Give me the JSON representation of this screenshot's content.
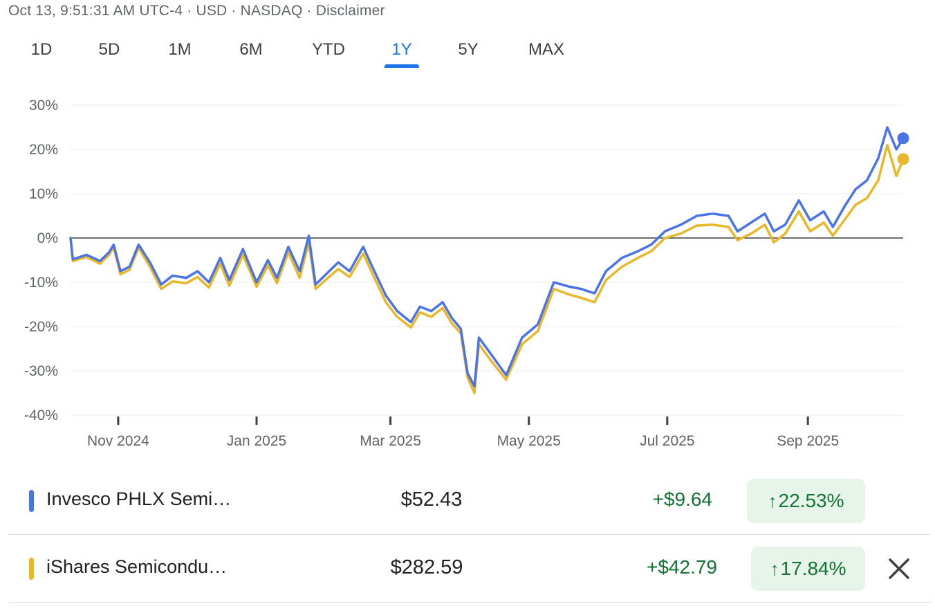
{
  "header": {
    "timestamp": "Oct 13, 9:51:31 AM UTC-4",
    "currency": "USD",
    "exchange": "NASDAQ",
    "disclaimer": "Disclaimer",
    "separator": "·"
  },
  "range_tabs": [
    {
      "label": "1D",
      "active": false
    },
    {
      "label": "5D",
      "active": false
    },
    {
      "label": "1M",
      "active": false
    },
    {
      "label": "6M",
      "active": false
    },
    {
      "label": "YTD",
      "active": false
    },
    {
      "label": "1Y",
      "active": true
    },
    {
      "label": "5Y",
      "active": false
    },
    {
      "label": "MAX",
      "active": false
    }
  ],
  "colors": {
    "series_1": "#4a73e8",
    "series_2": "#e8b72a",
    "positive": "#137333",
    "positive_bg": "#e6f4ea",
    "active_tab": "#1a73e8"
  },
  "chart_data": {
    "type": "line",
    "title": "",
    "xlabel": "",
    "ylabel": "",
    "y_unit": "%",
    "ylim": [
      -40,
      30
    ],
    "y_ticks": [
      30,
      20,
      10,
      0,
      -10,
      -20,
      -30,
      -40
    ],
    "y_tick_labels": [
      "30%",
      "20%",
      "10%",
      "0%",
      "-10%",
      "-20%",
      "-30%",
      "-40%"
    ],
    "x_range": [
      "2024-10-11",
      "2025-10-13"
    ],
    "x_ticks": [
      {
        "date": "2024-11-01",
        "label": "Nov 2024"
      },
      {
        "date": "2025-01-01",
        "label": "Jan 2025"
      },
      {
        "date": "2025-03-01",
        "label": "Mar 2025"
      },
      {
        "date": "2025-05-01",
        "label": "May 2025"
      },
      {
        "date": "2025-07-01",
        "label": "Jul 2025"
      },
      {
        "date": "2025-09-01",
        "label": "Sep 2025"
      }
    ],
    "grid": true,
    "baseline": 0,
    "series": [
      {
        "name": "Invesco PHLX Semiconductor ETF",
        "color": "#4a73e8",
        "points": [
          [
            "2024-10-11",
            0
          ],
          [
            "2024-10-12",
            -4.8
          ],
          [
            "2024-10-18",
            -3.8
          ],
          [
            "2024-10-24",
            -5.2
          ],
          [
            "2024-10-28",
            -3.2
          ],
          [
            "2024-10-30",
            -1.5
          ],
          [
            "2024-11-02",
            -7.5
          ],
          [
            "2024-11-06",
            -6.5
          ],
          [
            "2024-11-10",
            -1.5
          ],
          [
            "2024-11-15",
            -5.5
          ],
          [
            "2024-11-20",
            -10.5
          ],
          [
            "2024-11-25",
            -8.5
          ],
          [
            "2024-12-01",
            -9.0
          ],
          [
            "2024-12-06",
            -7.5
          ],
          [
            "2024-12-11",
            -10.0
          ],
          [
            "2024-12-16",
            -4.5
          ],
          [
            "2024-12-20",
            -9.5
          ],
          [
            "2024-12-26",
            -2.5
          ],
          [
            "2025-01-01",
            -10.0
          ],
          [
            "2025-01-06",
            -5.0
          ],
          [
            "2025-01-10",
            -9.0
          ],
          [
            "2025-01-15",
            -2.0
          ],
          [
            "2025-01-20",
            -7.5
          ],
          [
            "2025-01-24",
            0.5
          ],
          [
            "2025-01-27",
            -10.5
          ],
          [
            "2025-02-01",
            -8.0
          ],
          [
            "2025-02-06",
            -5.5
          ],
          [
            "2025-02-11",
            -7.5
          ],
          [
            "2025-02-17",
            -2.0
          ],
          [
            "2025-02-21",
            -6.5
          ],
          [
            "2025-02-27",
            -13.0
          ],
          [
            "2025-03-04",
            -16.5
          ],
          [
            "2025-03-10",
            -19.0
          ],
          [
            "2025-03-14",
            -15.5
          ],
          [
            "2025-03-19",
            -16.5
          ],
          [
            "2025-03-24",
            -14.5
          ],
          [
            "2025-03-28",
            -18.0
          ],
          [
            "2025-04-01",
            -20.5
          ],
          [
            "2025-04-04",
            -30.5
          ],
          [
            "2025-04-07",
            -33.5
          ],
          [
            "2025-04-09",
            -22.5
          ],
          [
            "2025-04-14",
            -26.0
          ],
          [
            "2025-04-21",
            -31.0
          ],
          [
            "2025-04-28",
            -22.5
          ],
          [
            "2025-05-05",
            -19.5
          ],
          [
            "2025-05-12",
            -10.0
          ],
          [
            "2025-05-19",
            -11.0
          ],
          [
            "2025-05-24",
            -11.5
          ],
          [
            "2025-05-30",
            -12.5
          ],
          [
            "2025-06-04",
            -7.5
          ],
          [
            "2025-06-11",
            -4.5
          ],
          [
            "2025-06-18",
            -3.0
          ],
          [
            "2025-06-24",
            -1.5
          ],
          [
            "2025-06-30",
            1.5
          ],
          [
            "2025-07-07",
            3.0
          ],
          [
            "2025-07-14",
            5.0
          ],
          [
            "2025-07-21",
            5.5
          ],
          [
            "2025-07-28",
            5.0
          ],
          [
            "2025-08-01",
            1.5
          ],
          [
            "2025-08-07",
            3.5
          ],
          [
            "2025-08-13",
            5.5
          ],
          [
            "2025-08-17",
            1.5
          ],
          [
            "2025-08-22",
            3.0
          ],
          [
            "2025-08-28",
            8.5
          ],
          [
            "2025-09-02",
            4.0
          ],
          [
            "2025-09-08",
            6.0
          ],
          [
            "2025-09-12",
            2.5
          ],
          [
            "2025-09-17",
            7.0
          ],
          [
            "2025-09-22",
            11.0
          ],
          [
            "2025-09-27",
            13.0
          ],
          [
            "2025-10-02",
            18.0
          ],
          [
            "2025-10-06",
            25.0
          ],
          [
            "2025-10-10",
            20.0
          ],
          [
            "2025-10-13",
            22.53
          ]
        ]
      },
      {
        "name": "iShares Semiconductor ETF",
        "color": "#e8b72a",
        "points": [
          [
            "2024-10-11",
            0
          ],
          [
            "2024-10-12",
            -5.2
          ],
          [
            "2024-10-18",
            -4.3
          ],
          [
            "2024-10-24",
            -5.8
          ],
          [
            "2024-10-28",
            -3.8
          ],
          [
            "2024-10-30",
            -2.0
          ],
          [
            "2024-11-02",
            -8.2
          ],
          [
            "2024-11-06",
            -7.2
          ],
          [
            "2024-11-10",
            -2.2
          ],
          [
            "2024-11-15",
            -6.5
          ],
          [
            "2024-11-20",
            -11.5
          ],
          [
            "2024-11-25",
            -9.8
          ],
          [
            "2024-12-01",
            -10.2
          ],
          [
            "2024-12-06",
            -8.8
          ],
          [
            "2024-12-11",
            -11.2
          ],
          [
            "2024-12-16",
            -5.8
          ],
          [
            "2024-12-20",
            -10.8
          ],
          [
            "2024-12-26",
            -3.8
          ],
          [
            "2025-01-01",
            -11.0
          ],
          [
            "2025-01-06",
            -6.2
          ],
          [
            "2025-01-10",
            -10.2
          ],
          [
            "2025-01-15",
            -3.2
          ],
          [
            "2025-01-20",
            -9.0
          ],
          [
            "2025-01-24",
            -1.0
          ],
          [
            "2025-01-27",
            -11.5
          ],
          [
            "2025-02-01",
            -9.2
          ],
          [
            "2025-02-06",
            -7.0
          ],
          [
            "2025-02-11",
            -8.8
          ],
          [
            "2025-02-17",
            -3.5
          ],
          [
            "2025-02-21",
            -8.0
          ],
          [
            "2025-02-27",
            -14.5
          ],
          [
            "2025-03-04",
            -17.8
          ],
          [
            "2025-03-10",
            -20.2
          ],
          [
            "2025-03-14",
            -16.8
          ],
          [
            "2025-03-19",
            -17.8
          ],
          [
            "2025-03-24",
            -15.8
          ],
          [
            "2025-03-28",
            -19.2
          ],
          [
            "2025-04-01",
            -21.5
          ],
          [
            "2025-04-04",
            -31.5
          ],
          [
            "2025-04-07",
            -35.0
          ],
          [
            "2025-04-09",
            -24.0
          ],
          [
            "2025-04-14",
            -27.5
          ],
          [
            "2025-04-21",
            -32.0
          ],
          [
            "2025-04-28",
            -24.0
          ],
          [
            "2025-05-05",
            -21.0
          ],
          [
            "2025-05-12",
            -11.5
          ],
          [
            "2025-05-19",
            -12.8
          ],
          [
            "2025-05-24",
            -13.5
          ],
          [
            "2025-05-30",
            -14.5
          ],
          [
            "2025-06-04",
            -9.5
          ],
          [
            "2025-06-11",
            -6.5
          ],
          [
            "2025-06-18",
            -4.5
          ],
          [
            "2025-06-24",
            -3.0
          ],
          [
            "2025-06-30",
            0.0
          ],
          [
            "2025-07-07",
            1.0
          ],
          [
            "2025-07-14",
            2.8
          ],
          [
            "2025-07-21",
            3.0
          ],
          [
            "2025-07-28",
            2.5
          ],
          [
            "2025-08-01",
            -0.5
          ],
          [
            "2025-08-07",
            1.0
          ],
          [
            "2025-08-13",
            3.0
          ],
          [
            "2025-08-17",
            -1.0
          ],
          [
            "2025-08-22",
            1.0
          ],
          [
            "2025-08-28",
            6.0
          ],
          [
            "2025-09-02",
            1.5
          ],
          [
            "2025-09-08",
            3.5
          ],
          [
            "2025-09-12",
            0.5
          ],
          [
            "2025-09-17",
            4.0
          ],
          [
            "2025-09-22",
            7.5
          ],
          [
            "2025-09-27",
            9.0
          ],
          [
            "2025-10-02",
            13.0
          ],
          [
            "2025-10-06",
            21.0
          ],
          [
            "2025-10-10",
            14.0
          ],
          [
            "2025-10-13",
            17.84
          ]
        ]
      }
    ]
  },
  "legend": [
    {
      "name": "Invesco PHLX Semi…",
      "price": "$52.43",
      "change": "+$9.64",
      "pct_arrow": "↑",
      "pct": "22.53%",
      "color": "#4a73e8"
    },
    {
      "name": "iShares Semicondu…",
      "price": "$282.59",
      "change": "+$42.79",
      "pct_arrow": "↑",
      "pct": "17.84%",
      "color": "#e8b72a"
    }
  ]
}
